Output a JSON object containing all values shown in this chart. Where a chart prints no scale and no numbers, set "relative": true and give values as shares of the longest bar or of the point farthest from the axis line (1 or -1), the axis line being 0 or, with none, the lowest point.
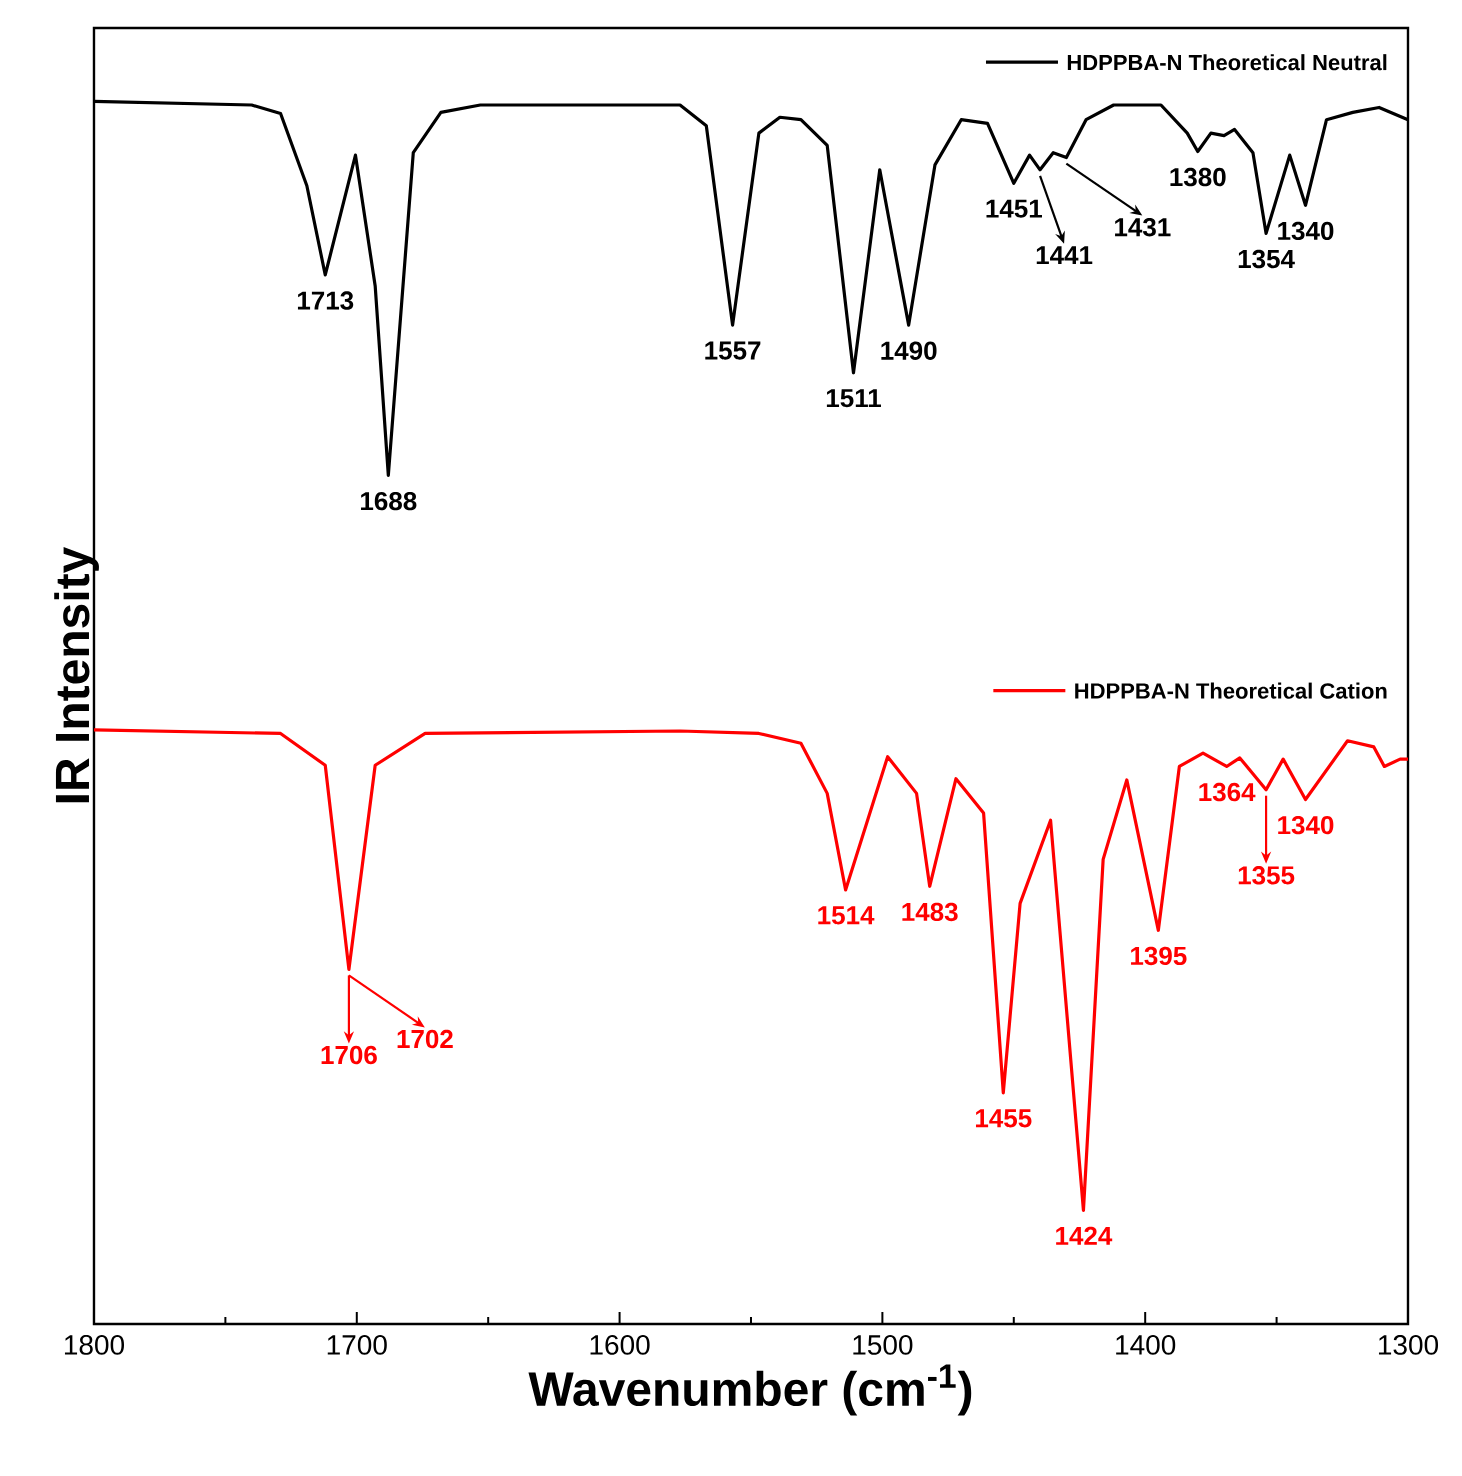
{
  "chart_data": {
    "type": "line",
    "relative": true,
    "xlabel": "Wavenumber (cm$^{-1}$)",
    "ylabel": "IR Intensity",
    "xlim": [
      1800,
      1300
    ],
    "xticks": [
      1800,
      {
        "value": 1750,
        "label": null
      },
      1700,
      {
        "value": 1650,
        "label": null
      },
      1600,
      {
        "value": 1550,
        "label": null
      },
      1500,
      {
        "value": 1450,
        "label": null
      },
      1400,
      {
        "value": 1350,
        "label": null
      },
      1300
    ],
    "tick_labels": "x",
    "legend": "top right",
    "series": [
      {
        "name": "HDPPBA-N Theoretical Neutral",
        "color": "#000000",
        "x": [
          1800,
          1740,
          1729,
          1719,
          1712,
          1700.5,
          1693,
          1688,
          1678.5,
          1668,
          1653,
          1577,
          1567,
          1557,
          1547,
          1539,
          1531,
          1521,
          1511,
          1501,
          1490,
          1480,
          1470,
          1460,
          1450,
          1444,
          1440,
          1435,
          1430,
          1422.5,
          1412,
          1394,
          1384,
          1380,
          1375,
          1370,
          1366,
          1359,
          1354,
          1345,
          1339,
          1331,
          1321,
          1311,
          1300
        ],
        "values": [
          1.0,
          0.997,
          0.99,
          0.931,
          0.858,
          0.956,
          0.849,
          0.694,
          0.958,
          0.991,
          0.997,
          0.997,
          0.98,
          0.817,
          0.974,
          0.987,
          0.985,
          0.964,
          0.778,
          0.944,
          0.817,
          0.948,
          0.985,
          0.982,
          0.933,
          0.956,
          0.944,
          0.958,
          0.954,
          0.985,
          0.997,
          0.997,
          0.974,
          0.959,
          0.974,
          0.972,
          0.977,
          0.958,
          0.892,
          0.956,
          0.915,
          0.985,
          0.991,
          0.995,
          0.985
        ]
      },
      {
        "name": "HDPPBA-N Theoretical Cation",
        "color": "#ff0000",
        "x": [
          1800,
          1729,
          1712,
          1703,
          1693,
          1674,
          1577,
          1547,
          1531,
          1521,
          1514,
          1498,
          1487,
          1482,
          1472,
          1461.5,
          1454,
          1447.6,
          1436,
          1423.5,
          1416,
          1407,
          1395,
          1387,
          1378,
          1369,
          1364,
          1354,
          1347.5,
          1339,
          1323,
          1313,
          1309,
          1303,
          1300
        ],
        "values": [
          0.486,
          0.483,
          0.457,
          0.29,
          0.457,
          0.483,
          0.485,
          0.483,
          0.475,
          0.434,
          0.355,
          0.464,
          0.434,
          0.358,
          0.446,
          0.418,
          0.189,
          0.344,
          0.412,
          0.093,
          0.38,
          0.445,
          0.322,
          0.456,
          0.467,
          0.456,
          0.463,
          0.437,
          0.462,
          0.429,
          0.477,
          0.472,
          0.456,
          0.462,
          0.462
        ]
      }
    ],
    "annotations": [
      {
        "text": "1713",
        "x": 1712,
        "y": 0.858
      },
      {
        "text": "1688",
        "x": 1688,
        "y": 0.694
      },
      {
        "text": "1557",
        "x": 1557,
        "y": 0.817
      },
      {
        "text": "1511",
        "x": 1511,
        "y": 0.778
      },
      {
        "text": "1490",
        "x": 1490,
        "y": 0.817
      },
      {
        "text": "1451",
        "x": 1450,
        "y": 0.933
      },
      {
        "text": "1441",
        "x": 1440,
        "y": 0.944
      },
      {
        "text": "1431",
        "x": 1430,
        "y": 0.954
      },
      {
        "text": "1380",
        "x": 1380,
        "y": 0.959
      },
      {
        "text": "1354",
        "x": 1354,
        "y": 0.892
      },
      {
        "text": "1340",
        "x": 1339,
        "y": 0.915
      },
      {
        "text": "1706",
        "x": 1703,
        "y": 0.29
      },
      {
        "text": "1702",
        "x": 1703,
        "y": 0.29
      },
      {
        "text": "1514",
        "x": 1514,
        "y": 0.355
      },
      {
        "text": "1483",
        "x": 1482,
        "y": 0.358
      },
      {
        "text": "1455",
        "x": 1454,
        "y": 0.189
      },
      {
        "text": "1424",
        "x": 1423.5,
        "y": 0.093
      },
      {
        "text": "1395",
        "x": 1395,
        "y": 0.322
      },
      {
        "text": "1364",
        "x": 1369,
        "y": 0.456
      },
      {
        "text": "1355",
        "x": 1354,
        "y": 0.437
      },
      {
        "text": "1340",
        "x": 1339,
        "y": 0.429
      }
    ]
  }
}
